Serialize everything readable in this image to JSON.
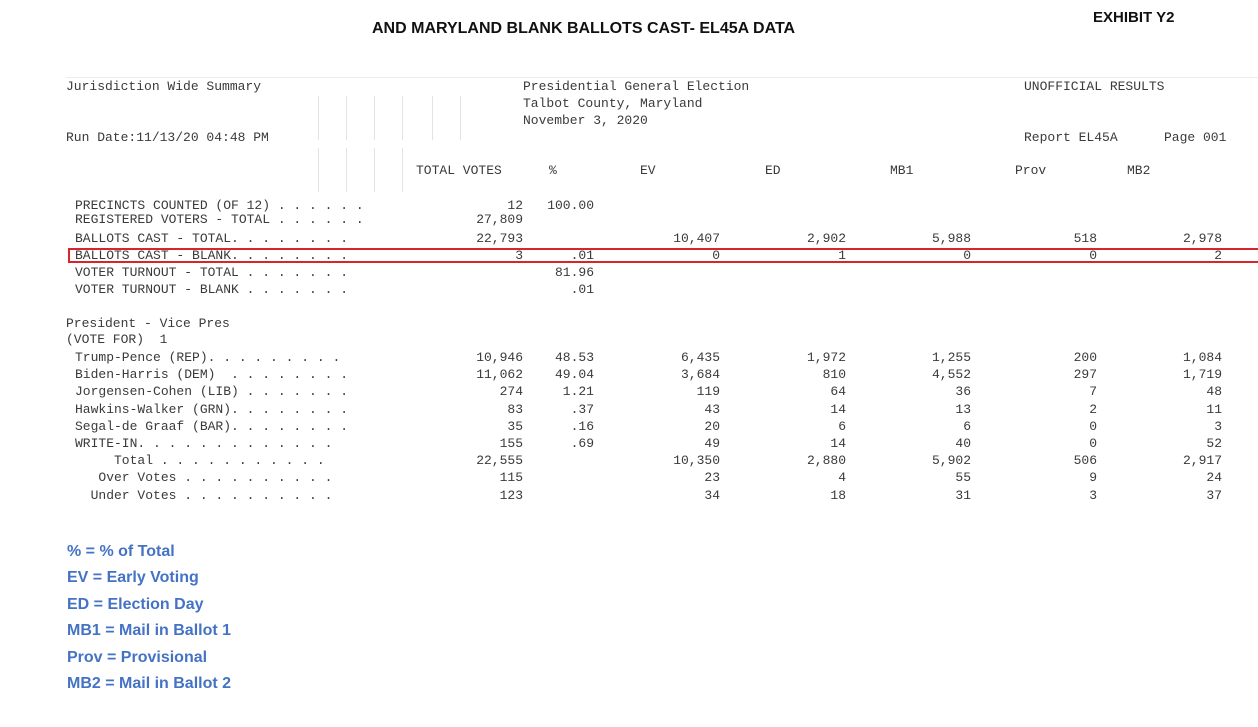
{
  "title": "AND MARYLAND BLANK BALLOTS CAST- EL45A DATA",
  "exhibit": "EXHIBIT Y2",
  "report": {
    "summary_label": "Jurisdiction Wide Summary",
    "election_lines": [
      "Presidential General Election",
      "Talbot County, Maryland",
      "November 3, 2020"
    ],
    "status": "UNOFFICIAL RESULTS",
    "run_date": "Run Date:11/13/20 04:48 PM",
    "report_id": "Report EL45A",
    "page": "Page 001"
  },
  "columns": [
    "TOTAL VOTES",
    "%",
    "EV",
    "ED",
    "MB1",
    "Prov",
    "MB2"
  ],
  "stats_rows": [
    {
      "label": "PRECINCTS COUNTED (OF 12) . . . . . .",
      "total": "12",
      "pct": "100.00",
      "ev": "",
      "ed": "",
      "mb1": "",
      "prov": "",
      "mb2": ""
    },
    {
      "label": "REGISTERED VOTERS - TOTAL . . . . . .",
      "total": "27,809",
      "pct": "",
      "ev": "",
      "ed": "",
      "mb1": "",
      "prov": "",
      "mb2": ""
    },
    {
      "label": "BALLOTS CAST - TOTAL. . . . . . . .",
      "total": "22,793",
      "pct": "",
      "ev": "10,407",
      "ed": "2,902",
      "mb1": "5,988",
      "prov": "518",
      "mb2": "2,978"
    },
    {
      "label": "BALLOTS CAST - BLANK. . . . . . . .",
      "total": "3",
      "pct": ".01",
      "ev": "0",
      "ed": "1",
      "mb1": "0",
      "prov": "0",
      "mb2": "2"
    },
    {
      "label": "VOTER TURNOUT - TOTAL . . . . . . .",
      "total": "",
      "pct": "81.96",
      "ev": "",
      "ed": "",
      "mb1": "",
      "prov": "",
      "mb2": ""
    },
    {
      "label": "VOTER TURNOUT - BLANK . . . . . . .",
      "total": "",
      "pct": ".01",
      "ev": "",
      "ed": "",
      "mb1": "",
      "prov": "",
      "mb2": ""
    }
  ],
  "contest": {
    "name": "President - Vice Pres",
    "vote_for": "(VOTE FOR)  1",
    "rows": [
      {
        "label": "Trump-Pence (REP). . . . . . . . .",
        "total": "10,946",
        "pct": "48.53",
        "ev": "6,435",
        "ed": "1,972",
        "mb1": "1,255",
        "prov": "200",
        "mb2": "1,084"
      },
      {
        "label": "Biden-Harris (DEM)  . . . . . . . .",
        "total": "11,062",
        "pct": "49.04",
        "ev": "3,684",
        "ed": "810",
        "mb1": "4,552",
        "prov": "297",
        "mb2": "1,719"
      },
      {
        "label": "Jorgensen-Cohen (LIB) . . . . . . .",
        "total": "274",
        "pct": "1.21",
        "ev": "119",
        "ed": "64",
        "mb1": "36",
        "prov": "7",
        "mb2": "48"
      },
      {
        "label": "Hawkins-Walker (GRN). . . . . . . .",
        "total": "83",
        "pct": ".37",
        "ev": "43",
        "ed": "14",
        "mb1": "13",
        "prov": "2",
        "mb2": "11"
      },
      {
        "label": "Segal-de Graaf (BAR). . . . . . . .",
        "total": "35",
        "pct": ".16",
        "ev": "20",
        "ed": "6",
        "mb1": "6",
        "prov": "0",
        "mb2": "3"
      },
      {
        "label": "WRITE-IN. . . . . . . . . . . . .",
        "total": "155",
        "pct": ".69",
        "ev": "49",
        "ed": "14",
        "mb1": "40",
        "prov": "0",
        "mb2": "52"
      },
      {
        "label": "     Total . . . . . . . . . . .",
        "total": "22,555",
        "pct": "",
        "ev": "10,350",
        "ed": "2,880",
        "mb1": "5,902",
        "prov": "506",
        "mb2": "2,917"
      },
      {
        "label": "   Over Votes . . . . . . . . . .",
        "total": "115",
        "pct": "",
        "ev": "23",
        "ed": "4",
        "mb1": "55",
        "prov": "9",
        "mb2": "24"
      },
      {
        "label": "  Under Votes . . . . . . . . . .",
        "total": "123",
        "pct": "",
        "ev": "34",
        "ed": "18",
        "mb1": "31",
        "prov": "3",
        "mb2": "37"
      }
    ]
  },
  "legend": [
    "% = % of Total",
    "EV = Early Voting",
    "ED = Election Day",
    "MB1 = Mail in Ballot 1",
    "Prov = Provisional",
    "MB2 = Mail in Ballot 2"
  ],
  "colors": {
    "highlight": "#d7262b",
    "legend": "#4472c4"
  }
}
